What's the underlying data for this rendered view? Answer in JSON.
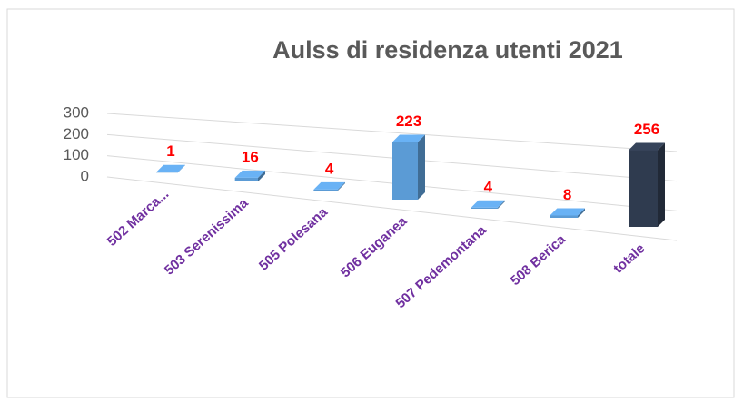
{
  "chart_data": {
    "type": "bar3d",
    "title": "Aulss di residenza utenti 2021",
    "categories": [
      "502 Marca...",
      "503 Serenissima",
      "505 Polesana",
      "506 Euganea",
      "507 Pedemontana",
      "508 Berica",
      "totale"
    ],
    "values": [
      1,
      16,
      4,
      223,
      4,
      8,
      256
    ],
    "colors": [
      "#5b9bd5",
      "#5b9bd5",
      "#5b9bd5",
      "#5b9bd5",
      "#5b9bd5",
      "#5b9bd5",
      "#2f3b4f"
    ],
    "ylim": [
      0,
      300
    ],
    "yticks": [
      0,
      100,
      200,
      300
    ],
    "grid": true
  }
}
